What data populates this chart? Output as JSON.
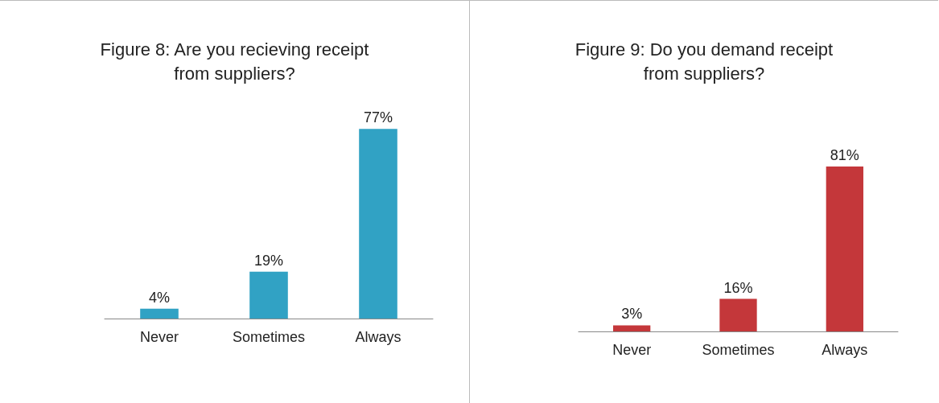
{
  "chart_data": [
    {
      "type": "bar",
      "title": "Figure 8: Are you recieving receipt\nfrom suppliers?",
      "categories": [
        "Never",
        "Sometimes",
        "Always"
      ],
      "values": [
        4,
        19,
        77
      ],
      "color": "#31a2c4",
      "value_labels": [
        "4%",
        "19%",
        "77%"
      ]
    },
    {
      "type": "bar",
      "title": "Figure 9: Do you demand receipt\nfrom suppliers?",
      "categories": [
        "Never",
        "Sometimes",
        "Always"
      ],
      "values": [
        3,
        16,
        81
      ],
      "color": "#c4373a",
      "value_labels": [
        "3%",
        "16%",
        "81%"
      ]
    }
  ]
}
